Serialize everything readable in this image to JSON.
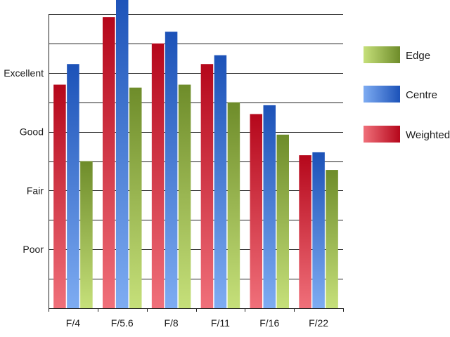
{
  "chart_data": {
    "type": "bar",
    "title": "",
    "xlabel": "",
    "ylabel": "",
    "categories": [
      "F/4",
      "F/5.6",
      "F/8",
      "F/11",
      "F/16",
      "F/22"
    ],
    "y_tick_labels": [
      {
        "value": 1,
        "label": "Poor"
      },
      {
        "value": 2,
        "label": "Fair"
      },
      {
        "value": 3,
        "label": "Good"
      },
      {
        "value": 4,
        "label": "Excellent"
      }
    ],
    "ylim": [
      0,
      5
    ],
    "gridlines_every": 0.5,
    "grid": true,
    "legend_position": "right",
    "series": [
      {
        "name": "Weighted",
        "values": [
          3.8,
          4.95,
          4.5,
          4.15,
          3.3,
          2.6
        ],
        "color_top": "#b5071b",
        "color_bottom": "#f0707a"
      },
      {
        "name": "Centre",
        "values": [
          4.15,
          5.35,
          4.7,
          4.3,
          3.45,
          2.65
        ],
        "color_top": "#1c52b8",
        "color_bottom": "#7eacf2"
      },
      {
        "name": "Edge",
        "values": [
          2.5,
          3.75,
          3.8,
          3.5,
          2.95,
          2.35
        ],
        "color_top": "#6e8c2a",
        "color_bottom": "#c6e07a"
      }
    ],
    "legend_order": [
      "Edge",
      "Centre",
      "Weighted"
    ]
  }
}
